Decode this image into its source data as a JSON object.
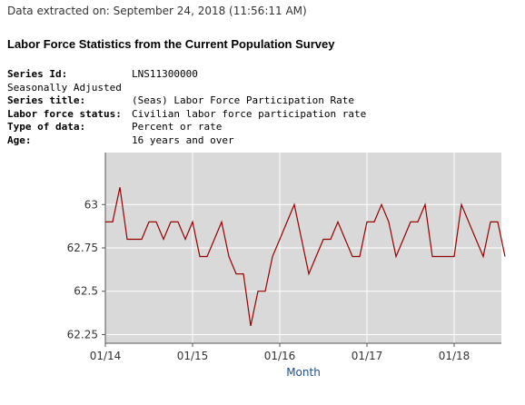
{
  "header": {
    "extracted": "Data extracted on: September 24, 2018 (11:56:11 AM)",
    "title": "Labor Force Statistics from the Current Population Survey"
  },
  "meta": {
    "series_id_label": "Series Id:",
    "series_id": "LNS11300000",
    "adjustment": "Seasonally Adjusted",
    "series_title_label": "Series title:",
    "series_title": "(Seas) Labor Force Participation Rate",
    "status_label": "Labor force status:",
    "status": "Civilian labor force participation rate",
    "type_label": "Type of data:",
    "type": "Percent or rate",
    "age_label": "Age:",
    "age": "16 years and over"
  },
  "colors": {
    "line": "#990000",
    "plot_bg": "#d9d9d9",
    "grid": "#ffffff",
    "axis_title": "#1f4e8c"
  },
  "chart_data": {
    "type": "line",
    "xlabel": "Month",
    "ylabel": "",
    "ylim": [
      62.2,
      63.3
    ],
    "yticks": [
      62.25,
      62.5,
      62.75,
      63
    ],
    "ytick_labels": [
      "62.25",
      "62.5",
      "62.75",
      "63"
    ],
    "xticks": [
      "2014-01",
      "2015-01",
      "2016-01",
      "2017-01",
      "2018-01"
    ],
    "xtick_labels": [
      "01/14",
      "01/15",
      "01/16",
      "01/17",
      "01/18"
    ],
    "grid": true,
    "x": [
      "2014-01",
      "2014-02",
      "2014-03",
      "2014-04",
      "2014-05",
      "2014-06",
      "2014-07",
      "2014-08",
      "2014-09",
      "2014-10",
      "2014-11",
      "2014-12",
      "2015-01",
      "2015-02",
      "2015-03",
      "2015-04",
      "2015-05",
      "2015-06",
      "2015-07",
      "2015-08",
      "2015-09",
      "2015-10",
      "2015-11",
      "2015-12",
      "2016-01",
      "2016-02",
      "2016-03",
      "2016-04",
      "2016-05",
      "2016-06",
      "2016-07",
      "2016-08",
      "2016-09",
      "2016-10",
      "2016-11",
      "2016-12",
      "2017-01",
      "2017-02",
      "2017-03",
      "2017-04",
      "2017-05",
      "2017-06",
      "2017-07",
      "2017-08",
      "2017-09",
      "2017-10",
      "2017-11",
      "2017-12",
      "2018-01",
      "2018-02",
      "2018-03",
      "2018-04",
      "2018-05",
      "2018-06",
      "2018-07",
      "2018-08"
    ],
    "series": [
      {
        "values": [
          62.9,
          62.9,
          63.1,
          62.8,
          62.8,
          62.8,
          62.9,
          62.9,
          62.8,
          62.9,
          62.9,
          62.8,
          62.9,
          62.7,
          62.7,
          62.8,
          62.9,
          62.7,
          62.6,
          62.6,
          62.3,
          62.5,
          62.5,
          62.7,
          62.8,
          62.9,
          63.0,
          62.8,
          62.6,
          62.7,
          62.8,
          62.8,
          62.9,
          62.8,
          62.7,
          62.7,
          62.9,
          62.9,
          63.0,
          62.9,
          62.7,
          62.8,
          62.9,
          62.9,
          63.0,
          62.7,
          62.7,
          62.7,
          62.7,
          63.0,
          62.9,
          62.8,
          62.7,
          62.9,
          62.9,
          62.7
        ]
      }
    ]
  }
}
